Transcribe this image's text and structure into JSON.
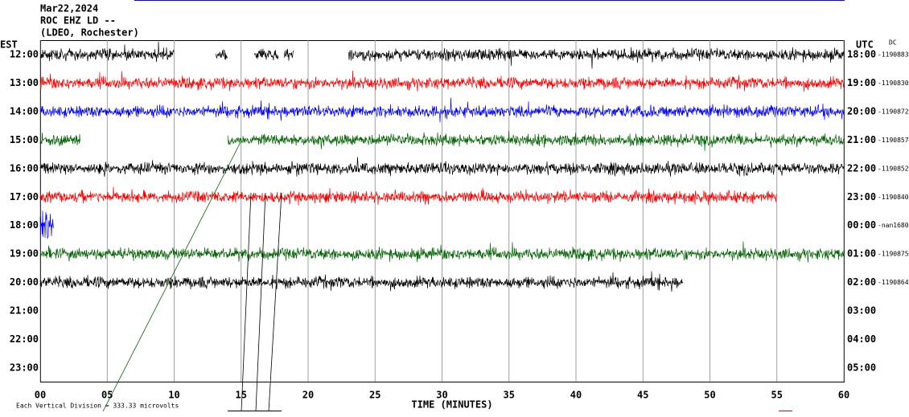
{
  "chart_data": {
    "type": "helicorder",
    "title": "Mar22,2024",
    "subtitle": "ROC EHZ LD --",
    "station": "(LDEO, Rochester)",
    "left_axis_label": "EST",
    "right_axis_label": "UTC",
    "dc_label": "DC",
    "x_label": "TIME (MINUTES)",
    "footer": "Each Vertical Division =  333.33 microvolts",
    "xlim": [
      0,
      60
    ],
    "xticks": [
      {
        "value": 0,
        "label": "00"
      },
      {
        "value": 5,
        "label": "05"
      },
      10,
      15,
      20,
      25,
      30,
      35,
      40,
      45,
      50,
      55,
      60
    ],
    "grid": true,
    "rows": [
      {
        "est": "12:00",
        "utc": "18:00",
        "dc": "-1190883",
        "color": "#000000",
        "segments": [
          [
            0,
            10
          ],
          [
            13.1,
            14
          ],
          [
            16,
            17.8
          ],
          [
            18.2,
            18.9
          ],
          [
            23,
            60
          ]
        ]
      },
      {
        "est": "13:00",
        "utc": "19:00",
        "dc": "-1190830",
        "color": "#ff0000",
        "segments": [
          [
            0,
            60
          ]
        ]
      },
      {
        "est": "14:00",
        "utc": "20:00",
        "dc": "-1190872",
        "color": "#0000ff",
        "segments": [
          [
            0,
            60
          ]
        ]
      },
      {
        "est": "15:00",
        "utc": "21:00",
        "dc": "-1190857",
        "color": "#006400",
        "segments": [
          [
            0,
            3
          ],
          [
            14,
            60
          ]
        ]
      },
      {
        "est": "16:00",
        "utc": "22:00",
        "dc": "-1190852",
        "color": "#000000",
        "segments": [
          [
            0,
            60
          ]
        ]
      },
      {
        "est": "17:00",
        "utc": "23:00",
        "dc": "-1190840",
        "color": "#ff0000",
        "segments": [
          [
            0,
            55
          ]
        ]
      },
      {
        "est": "18:00",
        "utc": "00:00",
        "dc": "-nan1680",
        "color": "#0000ff",
        "segments": [
          [
            0,
            1
          ]
        ]
      },
      {
        "est": "19:00",
        "utc": "01:00",
        "dc": "-1190875",
        "color": "#006400",
        "segments": [
          [
            0,
            60
          ]
        ]
      },
      {
        "est": "20:00",
        "utc": "02:00",
        "dc": "-1190864",
        "color": "#000000",
        "segments": [
          [
            0,
            48
          ]
        ]
      },
      {
        "est": "21:00",
        "utc": "03:00",
        "color": "#000000",
        "segments": []
      },
      {
        "est": "22:00",
        "utc": "04:00",
        "color": "#000000",
        "segments": []
      },
      {
        "est": "23:00",
        "utc": "05:00",
        "color": "#000000",
        "segments": []
      }
    ]
  }
}
